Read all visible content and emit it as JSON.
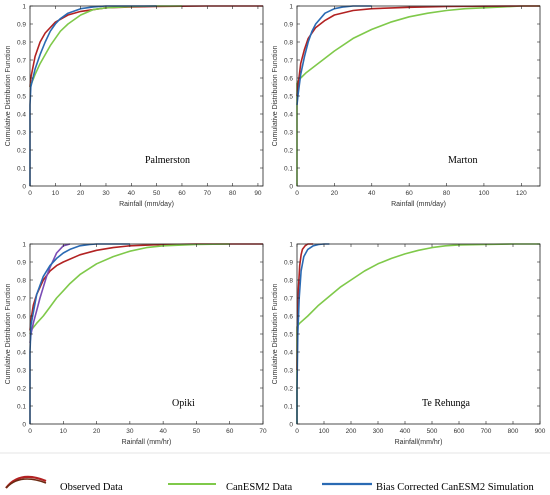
{
  "colors": {
    "observed": "#b22222",
    "observed_dark": "#6b2a12",
    "canesm2": "#7fc94a",
    "bias_corrected": "#2a6ab3",
    "bias_corrected_alt": "#7a4cb5"
  },
  "legend": [
    {
      "key": "observed",
      "label": "Observed Data"
    },
    {
      "key": "canesm2",
      "label": "CanESM2 Data"
    },
    {
      "key": "bias_corrected",
      "label": "Bias Corrected CanESM2 Simulation"
    }
  ],
  "chart_data": [
    {
      "type": "line",
      "site_label": "Palmerston",
      "xlabel": "Rainfall (mm/day)",
      "ylabel": "Cumulative Distribution Function",
      "xlim": [
        0,
        92
      ],
      "ylim": [
        0,
        1
      ],
      "xticks": [
        0,
        10,
        20,
        30,
        40,
        50,
        60,
        70,
        80,
        90
      ],
      "yticks": [
        0,
        0.1,
        0.2,
        0.3,
        0.4,
        0.5,
        0.6,
        0.7,
        0.8,
        0.9,
        1
      ],
      "series": [
        {
          "key": "observed",
          "x": [
            0,
            0.3,
            2,
            4,
            6,
            10,
            15,
            20,
            30,
            40,
            50,
            60,
            70,
            80,
            92
          ],
          "y": [
            0.55,
            0.6,
            0.72,
            0.8,
            0.85,
            0.91,
            0.95,
            0.97,
            0.99,
            0.995,
            0.998,
            0.999,
            1,
            1,
            1
          ]
        },
        {
          "key": "canesm2",
          "x": [
            0,
            0.3,
            2,
            4,
            6,
            8,
            10,
            12,
            15,
            20,
            25,
            30,
            40,
            50,
            60
          ],
          "y": [
            0.55,
            0.56,
            0.62,
            0.68,
            0.73,
            0.78,
            0.82,
            0.86,
            0.9,
            0.95,
            0.98,
            0.99,
            0.997,
            1,
            1
          ]
        },
        {
          "key": "bias_corrected",
          "x": [
            0,
            0,
            0.3,
            2,
            4,
            6,
            8,
            10,
            12,
            15,
            20,
            25,
            30,
            40,
            50
          ],
          "y": [
            0,
            0.45,
            0.55,
            0.65,
            0.73,
            0.8,
            0.86,
            0.9,
            0.93,
            0.96,
            0.985,
            0.995,
            1,
            1,
            1
          ]
        }
      ]
    },
    {
      "type": "line",
      "site_label": "Marton",
      "xlabel": "Rainfall (mm/day)",
      "ylabel": "Cumulative Distribution Function",
      "xlim": [
        0,
        130
      ],
      "ylim": [
        0,
        1
      ],
      "xticks": [
        0,
        20,
        40,
        60,
        80,
        100,
        120
      ],
      "yticks": [
        0,
        0.1,
        0.2,
        0.3,
        0.4,
        0.5,
        0.6,
        0.7,
        0.8,
        0.9,
        1
      ],
      "series": [
        {
          "key": "canesm2",
          "x": [
            0,
            0,
            0.5,
            2,
            5,
            10,
            15,
            20,
            30,
            40,
            50,
            60,
            70,
            80,
            90,
            100,
            110,
            120,
            130
          ],
          "y": [
            0,
            0.57,
            0.58,
            0.6,
            0.63,
            0.67,
            0.71,
            0.75,
            0.82,
            0.87,
            0.91,
            0.94,
            0.96,
            0.975,
            0.985,
            0.99,
            0.995,
            1,
            1
          ]
        },
        {
          "key": "observed",
          "x": [
            0,
            0.5,
            2,
            4,
            6,
            10,
            15,
            20,
            30,
            40,
            60,
            80,
            100,
            120,
            130
          ],
          "y": [
            0.5,
            0.55,
            0.68,
            0.76,
            0.82,
            0.88,
            0.92,
            0.95,
            0.975,
            0.985,
            0.993,
            0.997,
            0.999,
            1,
            1
          ]
        },
        {
          "key": "bias_corrected",
          "x": [
            0,
            0.5,
            2,
            4,
            6,
            8,
            10,
            15,
            20,
            25,
            30,
            40
          ],
          "y": [
            0.45,
            0.5,
            0.62,
            0.72,
            0.8,
            0.86,
            0.9,
            0.96,
            0.985,
            0.995,
            1,
            1
          ]
        }
      ]
    },
    {
      "type": "line",
      "site_label": "Opiki",
      "xlabel": "Rainfall (mm/hr)",
      "ylabel": "Cumulative Distribution Function",
      "xlim": [
        0,
        70
      ],
      "ylim": [
        0,
        1
      ],
      "xticks": [
        0,
        10,
        20,
        30,
        40,
        50,
        60,
        70
      ],
      "yticks": [
        0,
        0.1,
        0.2,
        0.3,
        0.4,
        0.5,
        0.6,
        0.7,
        0.8,
        0.9,
        1
      ],
      "series": [
        {
          "key": "observed",
          "x": [
            0,
            0.3,
            1,
            2,
            4,
            6,
            8,
            10,
            15,
            20,
            25,
            30,
            40,
            50,
            60,
            70
          ],
          "y": [
            0.52,
            0.58,
            0.66,
            0.72,
            0.8,
            0.85,
            0.88,
            0.9,
            0.94,
            0.965,
            0.98,
            0.99,
            0.997,
            1,
            1,
            1
          ]
        },
        {
          "key": "canesm2",
          "x": [
            0,
            0.3,
            2,
            4,
            6,
            8,
            10,
            12,
            15,
            20,
            25,
            30,
            35,
            40,
            50,
            60
          ],
          "y": [
            0.5,
            0.52,
            0.56,
            0.6,
            0.65,
            0.7,
            0.74,
            0.78,
            0.83,
            0.89,
            0.93,
            0.96,
            0.98,
            0.99,
            0.997,
            1
          ]
        },
        {
          "key": "bias_corrected_alt",
          "x": [
            0,
            0.3,
            1,
            2,
            3,
            4,
            5,
            6,
            7,
            8,
            10,
            12
          ],
          "y": [
            0.45,
            0.5,
            0.56,
            0.63,
            0.7,
            0.76,
            0.82,
            0.87,
            0.91,
            0.95,
            0.99,
            1
          ]
        },
        {
          "key": "bias_corrected",
          "x": [
            0,
            0,
            0.3,
            2,
            4,
            6,
            8,
            10,
            12,
            15,
            18,
            20,
            25,
            30
          ],
          "y": [
            0,
            0.4,
            0.55,
            0.72,
            0.82,
            0.88,
            0.92,
            0.95,
            0.97,
            0.99,
            0.997,
            1,
            1,
            1
          ]
        }
      ]
    },
    {
      "type": "line",
      "site_label": "Te Rehunga",
      "xlabel": "Rainfall(mm/hr)",
      "ylabel": "Cumulative Distribution Function",
      "xlim": [
        0,
        900
      ],
      "ylim": [
        0,
        1
      ],
      "xticks": [
        0,
        100,
        200,
        300,
        400,
        500,
        600,
        700,
        800,
        900
      ],
      "yticks": [
        0,
        0.1,
        0.2,
        0.3,
        0.4,
        0.5,
        0.6,
        0.7,
        0.8,
        0.9,
        1
      ],
      "series": [
        {
          "key": "canesm2",
          "x": [
            0,
            0,
            10,
            40,
            80,
            120,
            160,
            200,
            250,
            300,
            350,
            400,
            450,
            500,
            550,
            600,
            700,
            800,
            900
          ],
          "y": [
            0,
            0.54,
            0.56,
            0.6,
            0.66,
            0.71,
            0.76,
            0.8,
            0.85,
            0.89,
            0.92,
            0.945,
            0.965,
            0.98,
            0.99,
            0.995,
            0.998,
            1,
            1
          ]
        },
        {
          "key": "observed",
          "x": [
            0,
            2,
            5,
            10,
            15,
            20,
            30,
            40,
            60
          ],
          "y": [
            0.3,
            0.55,
            0.75,
            0.88,
            0.94,
            0.97,
            0.99,
            1,
            1
          ]
        },
        {
          "key": "bias_corrected",
          "x": [
            0,
            0,
            3,
            8,
            15,
            25,
            40,
            60,
            80,
            100,
            120
          ],
          "y": [
            0,
            0.2,
            0.5,
            0.7,
            0.85,
            0.93,
            0.97,
            0.99,
            0.997,
            1,
            1
          ]
        }
      ]
    }
  ]
}
